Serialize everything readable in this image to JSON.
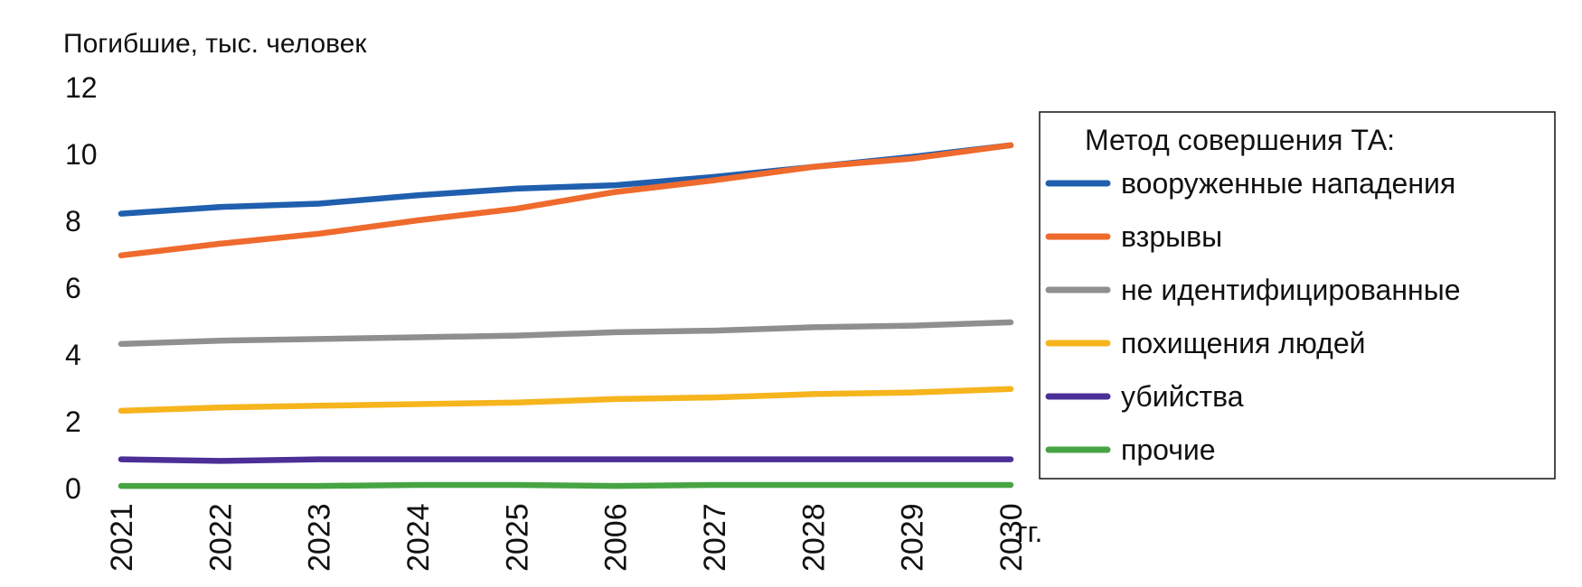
{
  "chart_data": {
    "type": "line",
    "y_axis_title": "Погибшие, тыс. человек",
    "x_unit": "гг.",
    "ylim": [
      0,
      12
    ],
    "y_ticks": [
      0,
      2,
      4,
      6,
      8,
      10,
      12
    ],
    "categories": [
      "2021",
      "2022",
      "2023",
      "2024",
      "2025",
      "2006",
      "2027",
      "2028",
      "2029",
      "2030"
    ],
    "legend": {
      "title": "Метод совершения ТА:",
      "placement": "right"
    },
    "series": [
      {
        "name": "вооруженные нападения",
        "color": "#1f5fae",
        "values": [
          8.2,
          8.4,
          8.5,
          8.75,
          8.95,
          9.05,
          9.3,
          9.6,
          9.9,
          10.25
        ]
      },
      {
        "name": "взрывы",
        "color": "#ef6a2d",
        "values": [
          6.95,
          7.3,
          7.6,
          8.0,
          8.35,
          8.85,
          9.2,
          9.6,
          9.85,
          10.25
        ]
      },
      {
        "name": "не идентифицированные",
        "color": "#8f8f8f",
        "values": [
          4.3,
          4.4,
          4.45,
          4.5,
          4.55,
          4.65,
          4.7,
          4.8,
          4.85,
          4.95
        ]
      },
      {
        "name": "похищения людей",
        "color": "#f6b41d",
        "values": [
          2.3,
          2.4,
          2.45,
          2.5,
          2.55,
          2.65,
          2.7,
          2.8,
          2.85,
          2.95
        ]
      },
      {
        "name": "убийства",
        "color": "#4b2f96",
        "values": [
          0.85,
          0.8,
          0.85,
          0.85,
          0.85,
          0.85,
          0.85,
          0.85,
          0.85,
          0.85
        ]
      },
      {
        "name": "прочие",
        "color": "#47a443",
        "values": [
          0.05,
          0.05,
          0.05,
          0.08,
          0.08,
          0.05,
          0.08,
          0.08,
          0.08,
          0.08
        ]
      }
    ]
  }
}
